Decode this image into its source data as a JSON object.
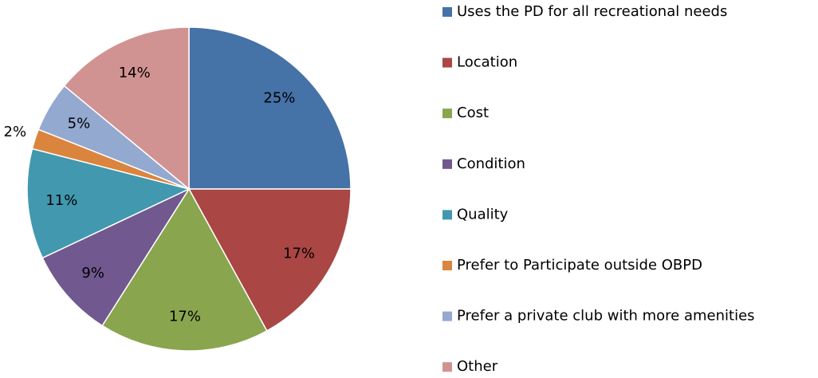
{
  "chart_data": {
    "type": "pie",
    "categories": [
      "Uses the PD for all recreational needs",
      "Location",
      "Cost",
      "Condition",
      "Quality",
      "Prefer to Participate outside OBPD",
      "Prefer a private club with more amenities",
      "Other"
    ],
    "values": [
      25,
      17,
      17,
      9,
      11,
      2,
      5,
      14
    ],
    "value_labels": [
      "25%",
      "17%",
      "17%",
      "9%",
      "11%",
      "2%",
      "5%",
      "14%"
    ],
    "colors": [
      "#4572a7",
      "#aa4643",
      "#89a54e",
      "#71588f",
      "#4198af",
      "#db843d",
      "#93a9cf",
      "#d19392"
    ],
    "legend": "right"
  }
}
